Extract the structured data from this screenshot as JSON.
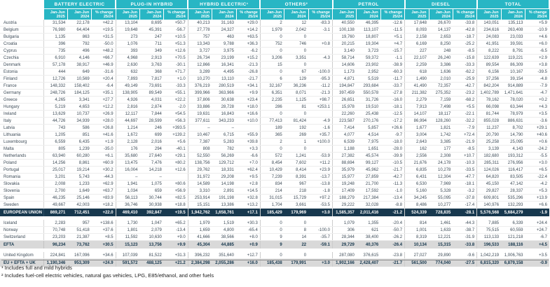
{
  "table": {
    "groups": [
      {
        "label": "BATTERY ELECTRIC"
      },
      {
        "label": "PLUG-IN HYBRID"
      },
      {
        "label": "HYBRID ELECTRIC¹"
      },
      {
        "label": "OTHERS²"
      },
      {
        "label": "PETROL"
      },
      {
        "label": "DIESEL"
      },
      {
        "label": "TOTAL"
      }
    ],
    "sub_columns": [
      {
        "line1": "Jan-Jun",
        "line2": "2025"
      },
      {
        "line1": "Jan-Jun",
        "line2": "2024"
      },
      {
        "line1": "% change",
        "line2": "25/24"
      }
    ],
    "rows": [
      {
        "label": "Austria",
        "type": "country",
        "cells": [
          "31,534",
          "22,178",
          "+42.2",
          "13,104",
          "8,695",
          "+50.7",
          "40,213",
          "31,163",
          "+29.0",
          "2",
          "12",
          "-83.3",
          "40,550",
          "46,395",
          "-12.6",
          "17,648",
          "26,670",
          "-33.8",
          "143,051",
          "135,113",
          "+5.9"
        ]
      },
      {
        "label": "Belgium",
        "type": "country",
        "cells": [
          "76,980",
          "64,404",
          "+19.5",
          "19,648",
          "45,391",
          "-56.7",
          "27,778",
          "24,327",
          "+14.2",
          "1,979",
          "2,042",
          "-3.1",
          "100,138",
          "113,107",
          "-11.5",
          "8,093",
          "14,137",
          "-42.8",
          "234,616",
          "263,408",
          "-10.9"
        ]
      },
      {
        "label": "Bulgaria",
        "type": "country",
        "cells": [
          "1,135",
          "863",
          "+31.5",
          "273",
          "247",
          "+10.5",
          "757",
          "463",
          "+63.5",
          "0",
          "0",
          "",
          "19,760",
          "18,807",
          "+5.1",
          "2,158",
          "2,653",
          "-18.7",
          "24,083",
          "23,033",
          "+4.6"
        ]
      },
      {
        "label": "Croatia",
        "type": "country",
        "cells": [
          "396",
          "792",
          "-50.0",
          "1,076",
          "711",
          "+51.3",
          "13,343",
          "9,788",
          "+36.3",
          "752",
          "746",
          "+0.8",
          "20,215",
          "19,304",
          "+4.7",
          "6,169",
          "8,250",
          "-25.2",
          "41,951",
          "39,591",
          "+6.0"
        ]
      },
      {
        "label": "Cyprus",
        "type": "country",
        "cells": [
          "735",
          "496",
          "+48.2",
          "393",
          "349",
          "+12.6",
          "3,727",
          "3,975",
          "-6.2",
          "0",
          "0",
          "",
          "3,140",
          "3,723",
          "-15.7",
          "227",
          "248",
          "-8.5",
          "8,222",
          "8,791",
          "-6.5"
        ]
      },
      {
        "label": "Czechia",
        "type": "country",
        "cells": [
          "6,910",
          "4,146",
          "+66.7",
          "4,968",
          "2,913",
          "+70.5",
          "26,734",
          "23,199",
          "+15.2",
          "3,206",
          "3,351",
          "-4.3",
          "58,714",
          "59,372",
          "-1.1",
          "22,107",
          "26,240",
          "-15.8",
          "122,639",
          "119,221",
          "+2.9"
        ]
      },
      {
        "label": "Denmark",
        "type": "country",
        "cells": [
          "57,178",
          "38,917",
          "+46.9",
          "2,630",
          "3,763",
          "-30.1",
          "12,866",
          "16,341",
          "-21.3",
          "15",
          "0",
          "",
          "14,606",
          "23,902",
          "-38.9",
          "2,259",
          "3,386",
          "-33.3",
          "89,554",
          "86,309",
          "+3.8"
        ]
      },
      {
        "label": "Estonia",
        "type": "country",
        "cells": [
          "444",
          "649",
          "-31.6",
          "632",
          "368",
          "+71.7",
          "3,289",
          "4,495",
          "-26.8",
          "0",
          "67",
          "-100.0",
          "1,173",
          "2,952",
          "-60.3",
          "618",
          "1,636",
          "-62.2",
          "6,156",
          "10,167",
          "-39.5"
        ]
      },
      {
        "label": "Finland",
        "type": "country",
        "cells": [
          "12,726",
          "10,569",
          "+20.4",
          "7,893",
          "7,817",
          "+1.0",
          "10,270",
          "13,110",
          "-21.7",
          "6",
          "129",
          "-95.3",
          "4,871",
          "5,519",
          "-11.7",
          "1,490",
          "2,010",
          "-25.9",
          "37,256",
          "39,154",
          "-4.8"
        ]
      },
      {
        "label": "France",
        "type": "country",
        "cells": [
          "148,332",
          "158,402",
          "-6.4",
          "49,149",
          "73,691",
          "-33.3",
          "376,219",
          "280,519",
          "+34.1",
          "32,167",
          "36,236",
          "-11.2",
          "194,847",
          "293,684",
          "-33.7",
          "41,490",
          "72,357",
          "-42.7",
          "842,204",
          "914,889",
          "-7.9"
        ]
      },
      {
        "label": "Germany",
        "type": "country",
        "cells": [
          "248,726",
          "184,125",
          "+35.1",
          "138,905",
          "89,549",
          "+55.1",
          "399,966",
          "363,966",
          "+9.9",
          "6,351",
          "8,071",
          "-21.3",
          "397,459",
          "550,578",
          "-27.8",
          "211,382",
          "275,352",
          "-23.2",
          "1,402,789",
          "1,471,641",
          "-4.7"
        ]
      },
      {
        "label": "Greece",
        "type": "country",
        "cells": [
          "4,265",
          "3,341",
          "+27.7",
          "4,926",
          "4,031",
          "+22.2",
          "37,806",
          "30,638",
          "+23.4",
          "2,235",
          "1,125",
          "+98.7",
          "26,651",
          "31,726",
          "-16.0",
          "2,279",
          "7,159",
          "-68.2",
          "78,162",
          "78,020",
          "+0.2"
        ]
      },
      {
        "label": "Hungary",
        "type": "country",
        "cells": [
          "5,219",
          "4,653",
          "+12.2",
          "2,816",
          "2,874",
          "-2.0",
          "33,886",
          "28,728",
          "+18.0",
          "286",
          "81",
          "+253.1",
          "15,978",
          "19,510",
          "-18.1",
          "7,913",
          "7,498",
          "+5.5",
          "66,098",
          "63,344",
          "+4.3"
        ]
      },
      {
        "label": "Ireland",
        "type": "country",
        "cells": [
          "13,629",
          "10,737",
          "+26.9",
          "12,117",
          "7,844",
          "+54.5",
          "19,631",
          "16,843",
          "+16.6",
          "0",
          "0",
          "",
          "22,260",
          "25,438",
          "-12.5",
          "14,107",
          "18,117",
          "-22.1",
          "81,744",
          "78,979",
          "+3.5"
        ]
      },
      {
        "label": "Italy",
        "type": "country",
        "cells": [
          "44,726",
          "34,939",
          "+28.0",
          "44,697",
          "28,599",
          "+56.3",
          "377,611",
          "343,233",
          "+10.0",
          "77,413",
          "81,424",
          "-4.9",
          "223,587",
          "270,176",
          "-17.2",
          "86,994",
          "128,260",
          "-32.2",
          "855,028",
          "886,631",
          "-3.6"
        ]
      },
      {
        "label": "Latvia",
        "type": "country",
        "cells": [
          "743",
          "586",
          "+26.8",
          "1,214",
          "246",
          "+393.5",
          "–",
          "–",
          "",
          "189",
          "192",
          "-1.6",
          "7,414",
          "5,857",
          "+26.6",
          "1,677",
          "1,821",
          "-7.9",
          "11,237",
          "8,702",
          "+29.1"
        ]
      },
      {
        "label": "Lithuania",
        "type": "country",
        "cells": [
          "1,205",
          "851",
          "+41.6",
          "1,672",
          "699",
          "+139.2",
          "10,467",
          "6,715",
          "+55.9",
          "365",
          "269",
          "+35.7",
          "4,077",
          "4,514",
          "-9.7",
          "3,004",
          "1,742",
          "+72.4",
          "20,790",
          "14,790",
          "+40.6"
        ]
      },
      {
        "label": "Luxembourg",
        "type": "country",
        "cells": [
          "6,559",
          "6,435",
          "+1.9",
          "2,128",
          "2,016",
          "+5.6",
          "7,387",
          "5,283",
          "+39.8",
          "2",
          "1",
          "+100.0",
          "6,539",
          "7,975",
          "-18.0",
          "2,643",
          "3,385",
          "-21.9",
          "25,258",
          "25,095",
          "+0.6"
        ]
      },
      {
        "label": "Malta",
        "type": "country",
        "cells": [
          "805",
          "1,239",
          "-35.0",
          "176",
          "294",
          "-40.1",
          "808",
          "782",
          "+3.3",
          "0",
          "0",
          "",
          "1,188",
          "1,651",
          "-28.0",
          "162",
          "177",
          "-8.5",
          "3,139",
          "4,143",
          "-24.2"
        ]
      },
      {
        "label": "Netherlands",
        "type": "country",
        "cells": [
          "63,940",
          "60,280",
          "+6.1",
          "35,680",
          "27,640",
          "+29.1",
          "52,550",
          "56,269",
          "-6.6",
          "572",
          "1,241",
          "-53.9",
          "27,382",
          "45,574",
          "-39.9",
          "2,556",
          "2,308",
          "+10.7",
          "182,680",
          "193,312",
          "-5.5"
        ]
      },
      {
        "label": "Poland",
        "type": "country",
        "cells": [
          "14,256",
          "8,861",
          "+60.9",
          "13,475",
          "7,476",
          "+80.2",
          "138,756",
          "129,712",
          "+7.0",
          "8,454",
          "7,602",
          "+11.2",
          "88,694",
          "99,127",
          "-10.5",
          "21,676",
          "24,178",
          "-10.3",
          "285,311",
          "276,956",
          "+3.0"
        ]
      },
      {
        "label": "Portugal",
        "type": "country",
        "cells": [
          "25,017",
          "19,214",
          "+30.2",
          "16,004",
          "14,218",
          "+12.6",
          "29,762",
          "18,331",
          "+62.4",
          "10,429",
          "8,414",
          "+23.9",
          "35,979",
          "45,962",
          "-21.7",
          "6,835",
          "10,278",
          "-33.5",
          "124,026",
          "116,417",
          "+6.5"
        ]
      },
      {
        "label": "Romania",
        "type": "country",
        "cells": [
          "3,201",
          "5,743",
          "-44.3",
          "–",
          "–",
          "",
          "31,972",
          "29,208",
          "+9.5",
          "7,239",
          "8,391",
          "-13.7",
          "15,977",
          "27,859",
          "-42.7",
          "6,431",
          "12,304",
          "-47.7",
          "64,820",
          "83,505",
          "-22.4"
        ]
      },
      {
        "label": "Slovakia",
        "type": "country",
        "cells": [
          "2,008",
          "1,233",
          "+62.9",
          "1,941",
          "1,075",
          "+80.6",
          "14,589",
          "14,198",
          "+2.8",
          "834",
          "967",
          "-13.8",
          "19,248",
          "21,700",
          "-11.3",
          "6,530",
          "7,969",
          "-18.1",
          "45,150",
          "47,142",
          "-4.2"
        ]
      },
      {
        "label": "Slovenia",
        "type": "country",
        "cells": [
          "2,700",
          "1,649",
          "+63.7",
          "1,034",
          "659",
          "+56.9",
          "3,310",
          "2,891",
          "+14.5",
          "214",
          "218",
          "-1.8",
          "17,409",
          "17,592",
          "-1.0",
          "5,160",
          "5,328",
          "-3.2",
          "29,827",
          "28,337",
          "+5.3"
        ]
      },
      {
        "label": "Spain",
        "type": "country",
        "cells": [
          "46,235",
          "25,146",
          "+83.9",
          "56,113",
          "30,744",
          "+82.5",
          "253,914",
          "191,198",
          "+32.8",
          "31,015",
          "15,729",
          "+97.2",
          "188,279",
          "217,384",
          "-13.4",
          "34,245",
          "55,095",
          "-37.8",
          "609,801",
          "535,296",
          "+13.9"
        ]
      },
      {
        "label": "Sweden",
        "type": "country",
        "cells": [
          "49,667",
          "42,003",
          "+18.2",
          "36,746",
          "30,938",
          "+18.8",
          "15,151",
          "13,386",
          "+13.2",
          "1,704",
          "3,661",
          "-53.5",
          "29,222",
          "32,028",
          "-8.8",
          "8,486",
          "10,277",
          "-17.4",
          "140,976",
          "132,293",
          "+6.6"
        ]
      },
      {
        "label": "EUROPEAN UNION",
        "type": "eu",
        "cells": [
          "869,271",
          "712,451",
          "+22.0",
          "469,410",
          "392,847",
          "+19.5",
          "1,942,762",
          "1,658,761",
          "+17.1",
          "185,429",
          "179,969",
          "+3.0",
          "1,585,357",
          "2,011,416",
          "-21.2",
          "524,339",
          "728,835",
          "-28.1",
          "5,576,568",
          "5,684,279",
          "-1.9"
        ]
      },
      {
        "type": "spacer"
      },
      {
        "label": "Iceland",
        "type": "country",
        "cells": [
          "2,283",
          "957",
          "+138.6",
          "1,730",
          "1,047",
          "+65.2",
          "1,979",
          "1,519",
          "+30.3",
          "0",
          "0",
          "",
          "1,079",
          "1,355",
          "-20.4",
          "814",
          "1,461",
          "-44.3",
          "7,885",
          "6,339",
          "+24.4"
        ]
      },
      {
        "label": "Norway",
        "type": "country",
        "cells": [
          "70,748",
          "51,418",
          "+37.6",
          "1,801",
          "2,079",
          "-13.4",
          "1,659",
          "4,800",
          "-65.4",
          "0",
          "8",
          "-100.0",
          "306",
          "621",
          "-50.7",
          "1,001",
          "1,633",
          "-38.7",
          "75,515",
          "60,559",
          "+24.7"
        ]
      },
      {
        "label": "Switzerland",
        "type": "country",
        "cells": [
          "23,203",
          "21,387",
          "+8.5",
          "11,592",
          "10,630",
          "+9.0",
          "41,666",
          "38,566",
          "+8.0",
          "9",
          "14",
          "-35.7",
          "28,344",
          "38,400",
          "-26.2",
          "8,319",
          "12,221",
          "-31.9",
          "113,133",
          "121,218",
          "-6.7"
        ]
      },
      {
        "label": "EFTA",
        "type": "subtotal",
        "cells": [
          "96,234",
          "73,762",
          "+30.5",
          "15,123",
          "13,756",
          "+9.9",
          "45,304",
          "44,885",
          "+0.9",
          "9",
          "22",
          "-59.1",
          "29,729",
          "40,376",
          "-26.4",
          "10,134",
          "15,315",
          "-33.8",
          "196,533",
          "188,116",
          "+4.5"
        ]
      },
      {
        "type": "spacer"
      },
      {
        "label": "United Kingdom",
        "type": "country",
        "cells": [
          "224,841",
          "167,096",
          "+34.6",
          "107,039",
          "81,522",
          "+31.3",
          "396,232",
          "351,640",
          "+12.7",
          "0",
          "0",
          "",
          "287,080",
          "376,615",
          "-23.8",
          "27,027",
          "29,890",
          "-9.6",
          "1,042,219",
          "1,006,763",
          "+3.5"
        ]
      },
      {
        "label": "EU + EFTA + UK",
        "type": "grand",
        "cells": [
          "1,190,346",
          "953,309",
          "+24.9",
          "591,572",
          "488,125",
          "+21.2",
          "2,384,298",
          "2,055,286",
          "+16.0",
          "185,438",
          "179,991",
          "+3.0",
          "1,902,166",
          "2,428,407",
          "-21.7",
          "561,500",
          "774,040",
          "-27.5",
          "6,815,320",
          "6,879,158",
          "-0.9"
        ]
      }
    ]
  },
  "footnotes": [
    "¹ Includes full and mild hybrids",
    "² Includes fuel-cell electric vehicles, natural gas vehicles, LPG, E85/ethanol, and other fuels"
  ],
  "colors": {
    "header_teal": "#28b6c4",
    "eu_row_navy": "#17384e",
    "subtotal_gray": "#d9d9d9",
    "body_text": "#3d4b57"
  }
}
